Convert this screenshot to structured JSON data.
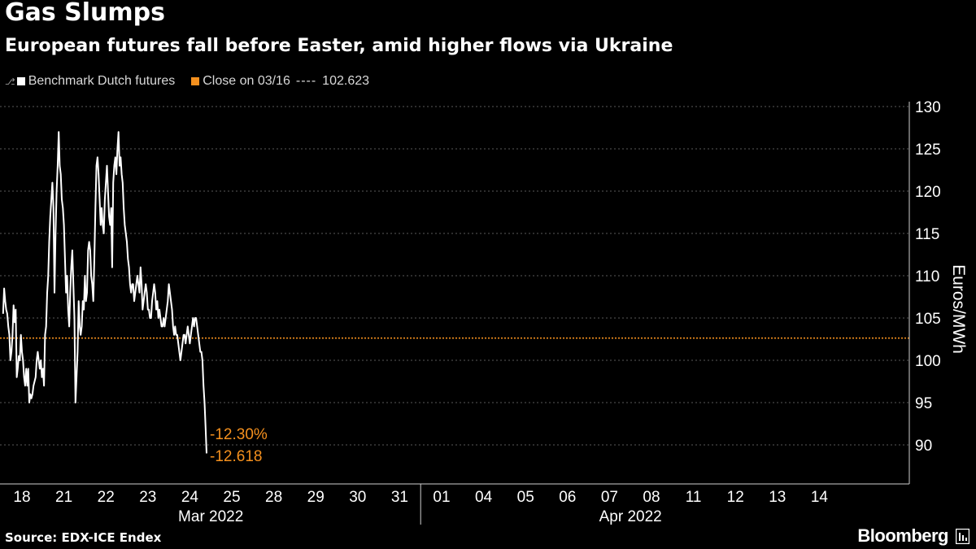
{
  "header": {
    "title": "Gas Slumps",
    "subtitle": "European futures fall before Easter, amid higher flows via Ukraine"
  },
  "legend": {
    "series_label": "Benchmark Dutch futures",
    "reference_label": "Close on 03/16",
    "reference_dashes": "----",
    "reference_value": "102.623"
  },
  "footer": {
    "source": "Source: EDX-ICE Endex",
    "brand": "Bloomberg"
  },
  "colors": {
    "background": "#000000",
    "series": "#ffffff",
    "reference": "#f4901e",
    "grid": "#5a5a5a"
  },
  "chart_data": {
    "type": "line",
    "title": "Gas Slumps",
    "subtitle": "European futures fall before Easter, amid higher flows via Ukraine",
    "xlabel": "",
    "ylabel": "Euros/MWh",
    "ylim": [
      85,
      130
    ],
    "yticks": [
      90,
      95,
      100,
      105,
      110,
      115,
      120,
      125,
      130
    ],
    "grid": true,
    "legend_position": "top-left",
    "x_ticks": [
      "18",
      "21",
      "22",
      "23",
      "24",
      "25",
      "28",
      "29",
      "30",
      "31",
      "01",
      "04",
      "05",
      "06",
      "07",
      "08",
      "11",
      "12",
      "13",
      "14"
    ],
    "month_labels": [
      {
        "label": "Mar 2022",
        "from_tick": 0,
        "to_tick": 9
      },
      {
        "label": "Apr 2022",
        "from_tick": 10,
        "to_tick": 19
      }
    ],
    "month_divider_between_ticks": [
      9,
      10
    ],
    "reference_line": {
      "name": "Close on 03/16",
      "value": 102.623
    },
    "annotations": [
      {
        "text": "-12.30%",
        "kind": "percent_change"
      },
      {
        "text": "-12.618",
        "kind": "absolute_change"
      }
    ],
    "series": [
      {
        "name": "Benchmark Dutch futures",
        "x_start": -0.45,
        "x_step": 0.025,
        "values": [
          105.5,
          108.5,
          107,
          106,
          105.5,
          104,
          103,
          100,
          101,
          103,
          106.5,
          104.5,
          106,
          98,
          99,
          100.5,
          100,
          103,
          101,
          100,
          98,
          97,
          99,
          97,
          99,
          95,
          96,
          95.5,
          96,
          97,
          97.5,
          98,
          100,
          101,
          100,
          99,
          100,
          98,
          99,
          97,
          103,
          104,
          108,
          110,
          114,
          117,
          119,
          121,
          118,
          108,
          115,
          120,
          123,
          127,
          123,
          122,
          119,
          118,
          116,
          112,
          108,
          110,
          106,
          104,
          108,
          111,
          113,
          109,
          105,
          95,
          98,
          101,
          107,
          104,
          103,
          104,
          107,
          106,
          110,
          107,
          108,
          113,
          114,
          113,
          110,
          109,
          107,
          112,
          118,
          123,
          124,
          122,
          119,
          116,
          118,
          116,
          115,
          119,
          121,
          123,
          120,
          117,
          116,
          118,
          111,
          121,
          123,
          124,
          122,
          125,
          127,
          123,
          124,
          122,
          121,
          118,
          116,
          115,
          114,
          112,
          111,
          109,
          108,
          109,
          109,
          107,
          108,
          109,
          110,
          109,
          108,
          111,
          109,
          106,
          107,
          108,
          109,
          108,
          106,
          106,
          105,
          105,
          107,
          108,
          109,
          108,
          106,
          107,
          105,
          106,
          105,
          104,
          104,
          105,
          104,
          105,
          106,
          107,
          109,
          108,
          107,
          106,
          104,
          103,
          104,
          103,
          103,
          102,
          101,
          100,
          101,
          102,
          103,
          103,
          102,
          103,
          104,
          103,
          102,
          103,
          104,
          105,
          104,
          105,
          105,
          104,
          103,
          102,
          101,
          101,
          100,
          97,
          95,
          92,
          89
        ]
      }
    ]
  }
}
